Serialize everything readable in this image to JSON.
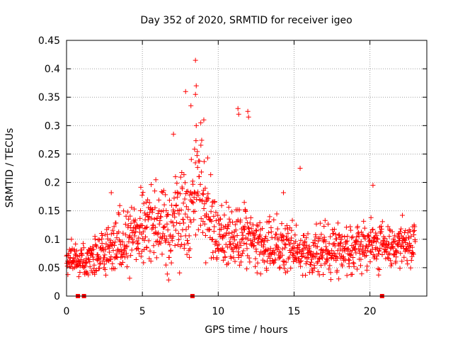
{
  "chart_data": {
    "type": "scatter",
    "title": "Day 352 of 2020, SRMTID for receiver igeo",
    "xlabel": "GPS time / hours",
    "ylabel": "SRMTID / TECUs",
    "xlim": [
      0,
      23.75
    ],
    "ylim": [
      0,
      0.45
    ],
    "xticks": [
      0,
      5,
      10,
      15,
      20
    ],
    "xtick_labels": [
      "0",
      "5",
      "10",
      "15",
      "20"
    ],
    "yticks": [
      0,
      0.05,
      0.1,
      0.15,
      0.2,
      0.25,
      0.3,
      0.35,
      0.4,
      0.45
    ],
    "ytick_labels": [
      "0",
      "0.05",
      "0.1",
      "0.15",
      "0.2",
      "0.25",
      "0.3",
      "0.35",
      "0.4",
      "0.45"
    ],
    "grid": true,
    "marker": "+",
    "color": "#ff0000",
    "series_name": "SRMTID",
    "baseline_markers_x": [
      0.75,
      1.15,
      8.3,
      20.8
    ],
    "baseline_markers_y": 0,
    "trend": {
      "x": [
        0,
        1,
        2,
        3,
        4,
        5,
        6,
        7,
        8,
        8.5,
        9,
        10,
        11,
        12,
        13,
        14,
        15,
        16,
        17,
        18,
        19,
        20,
        21,
        22,
        23
      ],
      "median": [
        0.06,
        0.065,
        0.075,
        0.085,
        0.1,
        0.12,
        0.12,
        0.13,
        0.14,
        0.2,
        0.17,
        0.11,
        0.1,
        0.1,
        0.09,
        0.085,
        0.08,
        0.075,
        0.08,
        0.085,
        0.085,
        0.09,
        0.09,
        0.09,
        0.085
      ],
      "spread": [
        0.02,
        0.02,
        0.03,
        0.035,
        0.04,
        0.05,
        0.05,
        0.06,
        0.07,
        0.08,
        0.07,
        0.04,
        0.045,
        0.04,
        0.035,
        0.035,
        0.035,
        0.03,
        0.03,
        0.03,
        0.03,
        0.03,
        0.03,
        0.03,
        0.03
      ]
    },
    "outliers": [
      {
        "x": 8.5,
        "y": 0.415
      },
      {
        "x": 8.55,
        "y": 0.37
      },
      {
        "x": 8.5,
        "y": 0.355
      },
      {
        "x": 7.85,
        "y": 0.36
      },
      {
        "x": 8.2,
        "y": 0.335
      },
      {
        "x": 11.3,
        "y": 0.33
      },
      {
        "x": 11.35,
        "y": 0.32
      },
      {
        "x": 11.95,
        "y": 0.325
      },
      {
        "x": 12.0,
        "y": 0.315
      },
      {
        "x": 9.05,
        "y": 0.31
      },
      {
        "x": 8.85,
        "y": 0.305
      },
      {
        "x": 7.05,
        "y": 0.285
      },
      {
        "x": 15.4,
        "y": 0.225
      },
      {
        "x": 20.2,
        "y": 0.195
      },
      {
        "x": 2.95,
        "y": 0.182
      },
      {
        "x": 14.3,
        "y": 0.182
      }
    ]
  }
}
